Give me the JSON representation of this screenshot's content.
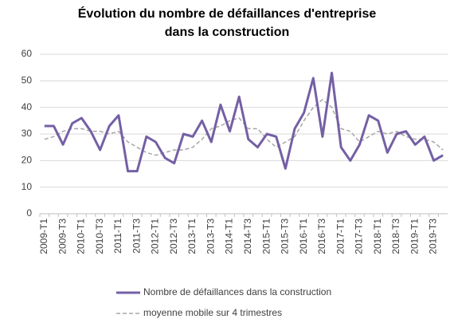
{
  "chart_data": {
    "type": "line",
    "title": "Évolution du nombre de défaillances d'entreprise dans la construction",
    "categories": [
      "2009-T1",
      null,
      "2009-T3",
      null,
      "2010-T1",
      null,
      "2010-T3",
      null,
      "2011-T1",
      null,
      "2011-T3",
      null,
      "2012-T1",
      null,
      "2012-T3",
      null,
      "2013-T1",
      null,
      "2013-T3",
      null,
      "2014-T1",
      null,
      "2014-T3",
      null,
      "2015-T1",
      null,
      "2015-T3",
      null,
      "2016-T1",
      null,
      "2016-T3",
      null,
      "2017-T1",
      null,
      "2017-T3",
      null,
      "2018-T1",
      null,
      "2018-T3",
      null,
      "2019-T1",
      null,
      "2019-T3",
      null
    ],
    "series": [
      {
        "name": "Nombre de défaillances dans la construction",
        "color": "#7460a4",
        "dashed": false,
        "values": [
          33,
          33,
          26,
          34,
          36,
          31,
          24,
          33,
          37,
          16,
          16,
          29,
          27,
          21,
          19,
          30,
          29,
          35,
          27,
          41,
          31,
          44,
          28,
          25,
          30,
          29,
          17,
          32,
          38,
          51,
          29,
          53,
          25,
          20,
          26,
          37,
          35,
          23,
          30,
          31,
          26,
          29,
          20,
          22
        ]
      },
      {
        "name": "moyenne mobile sur 4 trimestres",
        "color": "#a6a6a6",
        "dashed": true,
        "values": [
          28,
          29,
          31,
          32,
          32,
          31,
          31,
          30,
          31,
          27,
          25,
          23,
          22,
          23,
          24,
          24,
          25,
          28,
          32,
          33,
          35,
          36,
          32,
          32,
          28,
          25,
          27,
          29,
          35,
          40,
          43,
          40,
          32,
          31,
          27,
          29,
          31,
          30,
          31,
          29,
          28,
          28,
          27,
          24
        ]
      }
    ],
    "ylim": [
      0,
      60
    ],
    "yticks": [
      0,
      10,
      20,
      30,
      40,
      50,
      60
    ],
    "grid": true,
    "legend": "bottom"
  }
}
